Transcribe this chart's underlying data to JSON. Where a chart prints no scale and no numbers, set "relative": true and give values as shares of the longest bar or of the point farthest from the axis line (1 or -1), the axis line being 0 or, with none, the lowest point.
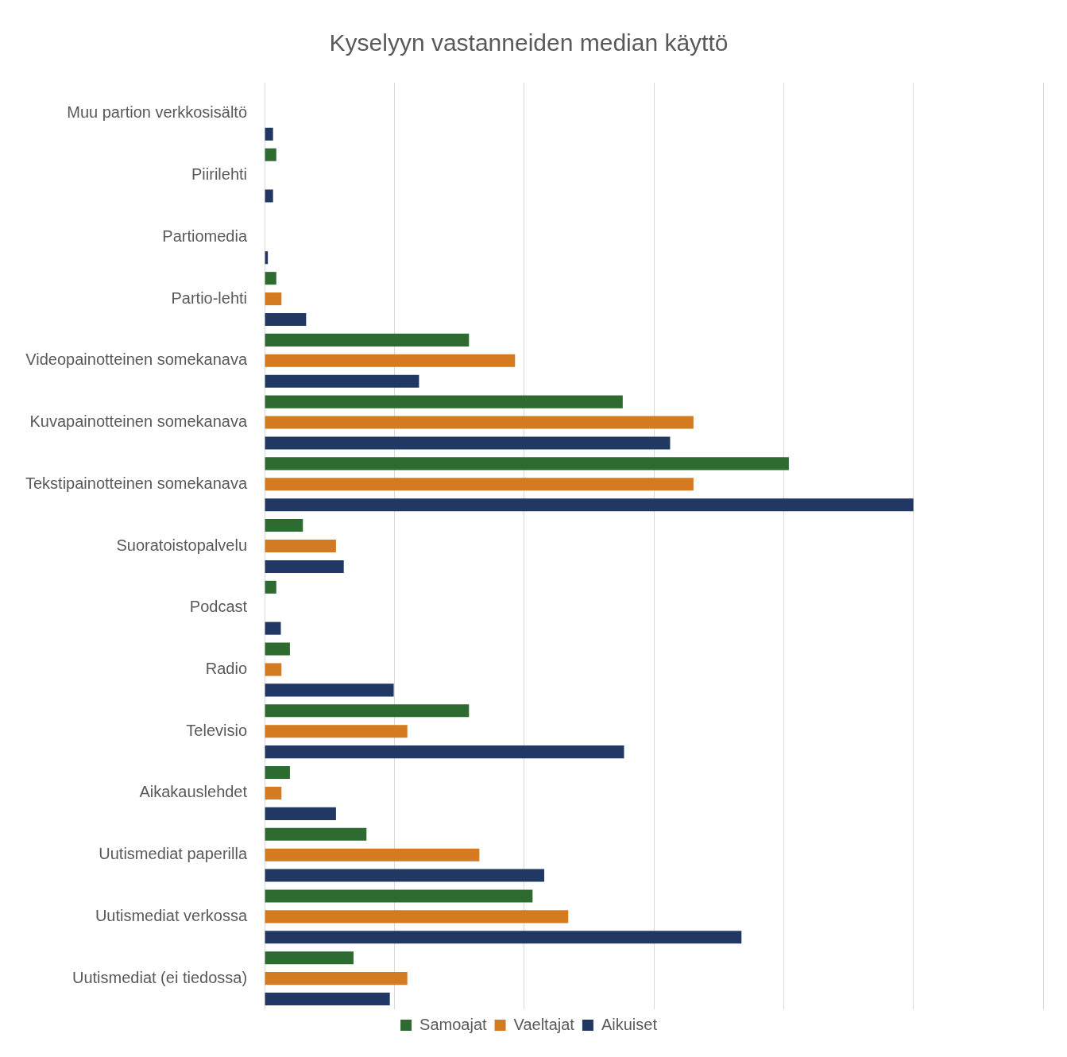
{
  "chart_data": {
    "type": "bar",
    "orientation": "horizontal",
    "relative": true,
    "title": "Kyselyyn vastanneiden median käyttö",
    "categories": [
      "Muu partion verkkosisältö",
      "Piirilehti",
      "Partiomedia",
      "Partio-lehti",
      "Videopainotteinen somekanava",
      "Kuvapainotteinen somekanava",
      "Tekstipainotteinen somekanava",
      "Suoratoistopalvelu",
      "Podcast",
      "Radio",
      "Televisio",
      "Aikakauslehdet",
      "Uutismediat paperilla",
      "Uutismediat verkossa",
      "Uutismediat (ei tiedossa)"
    ],
    "series": [
      {
        "name": "Samoajat",
        "color": "#2e6b30",
        "values": [
          0,
          0.018,
          0,
          0.018,
          0.315,
          0.552,
          0.808,
          0.059,
          0.018,
          0.039,
          0.315,
          0.039,
          0.157,
          0.413,
          0.137
        ]
      },
      {
        "name": "Vaeltajat",
        "color": "#d47b22",
        "values": [
          0,
          0,
          0,
          0.026,
          0.386,
          0.661,
          0.661,
          0.11,
          0,
          0.026,
          0.22,
          0.026,
          0.331,
          0.468,
          0.22
        ]
      },
      {
        "name": "Aikuiset",
        "color": "#213864",
        "values": [
          0.013,
          0.013,
          0.005,
          0.064,
          0.238,
          0.625,
          1,
          0.122,
          0.025,
          0.199,
          0.554,
          0.11,
          0.431,
          0.735,
          0.193
        ]
      }
    ],
    "grid": "x",
    "legend": "bottom"
  }
}
